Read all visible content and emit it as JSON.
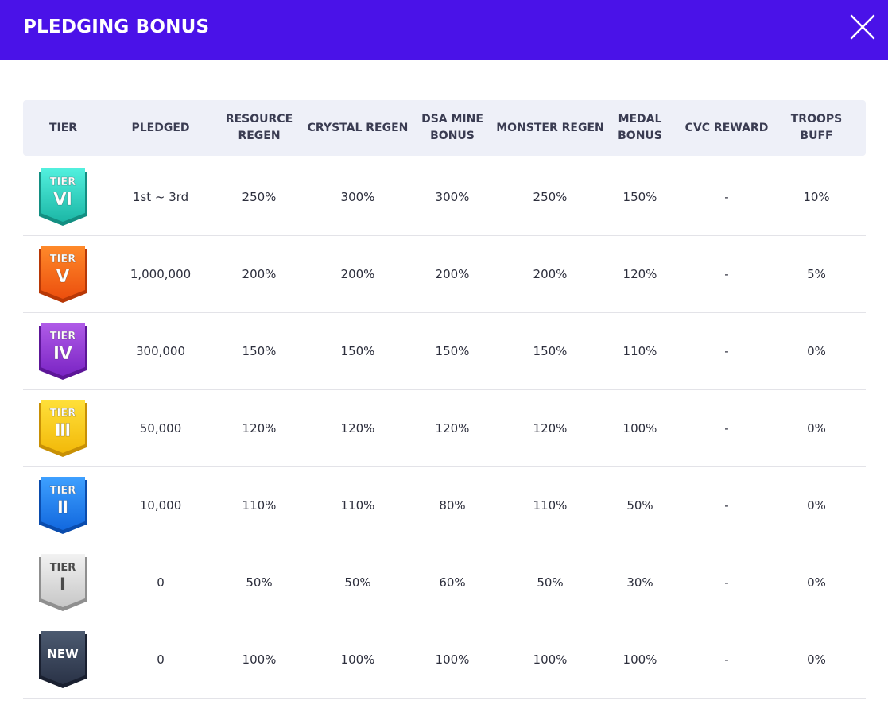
{
  "header": {
    "title": "PLEDGING BONUS"
  },
  "columns": [
    "TIER",
    "PLEDGED",
    "RESOURCE REGEN",
    "CRYSTAL REGEN",
    "DSA MINE BONUS",
    "MONSTER REGEN",
    "MEDAL BONUS",
    "CVC REWARD",
    "TROOPS BUFF"
  ],
  "rows": [
    {
      "tier_label": "TIER",
      "tier_numeral": "Ⅵ",
      "colors": [
        "#52f0de",
        "#1cb7a6",
        "#138f82"
      ],
      "pledged": "1st ~ 3rd",
      "resource": "250%",
      "crystal": "300%",
      "dsa": "300%",
      "monster": "250%",
      "medal": "150%",
      "cvc": "-",
      "troops": "10%"
    },
    {
      "tier_label": "TIER",
      "tier_numeral": "Ⅴ",
      "colors": [
        "#ff8a2a",
        "#ec4f0e",
        "#b83806"
      ],
      "pledged": "1,000,000",
      "resource": "200%",
      "crystal": "200%",
      "dsa": "200%",
      "monster": "200%",
      "medal": "120%",
      "cvc": "-",
      "troops": "5%"
    },
    {
      "tier_label": "TIER",
      "tier_numeral": "Ⅳ",
      "colors": [
        "#b05ce8",
        "#7a24c4",
        "#5d1698"
      ],
      "pledged": "300,000",
      "resource": "150%",
      "crystal": "150%",
      "dsa": "150%",
      "monster": "150%",
      "medal": "110%",
      "cvc": "-",
      "troops": "0%"
    },
    {
      "tier_label": "TIER",
      "tier_numeral": "Ⅲ",
      "colors": [
        "#ffe03a",
        "#f2b90a",
        "#c89005"
      ],
      "pledged": "50,000",
      "resource": "120%",
      "crystal": "120%",
      "dsa": "120%",
      "monster": "120%",
      "medal": "100%",
      "cvc": "-",
      "troops": "0%"
    },
    {
      "tier_label": "TIER",
      "tier_numeral": "Ⅱ",
      "colors": [
        "#3ea0ff",
        "#1268de",
        "#0a4cad"
      ],
      "pledged": "10,000",
      "resource": "110%",
      "crystal": "110%",
      "dsa": "80%",
      "monster": "110%",
      "medal": "50%",
      "cvc": "-",
      "troops": "0%"
    },
    {
      "tier_label": "TIER",
      "tier_numeral": "Ⅰ",
      "colors": [
        "#f2f2f2",
        "#c7c7c7",
        "#8f8f8f"
      ],
      "pledged": "0",
      "resource": "50%",
      "crystal": "50%",
      "dsa": "60%",
      "monster": "50%",
      "medal": "30%",
      "cvc": "-",
      "troops": "0%"
    },
    {
      "tier_label": "",
      "tier_numeral": "NEW",
      "colors": [
        "#4c5a70",
        "#2a3347",
        "#1a2030"
      ],
      "pledged": "0",
      "resource": "100%",
      "crystal": "100%",
      "dsa": "100%",
      "monster": "100%",
      "medal": "100%",
      "cvc": "-",
      "troops": "0%"
    }
  ]
}
